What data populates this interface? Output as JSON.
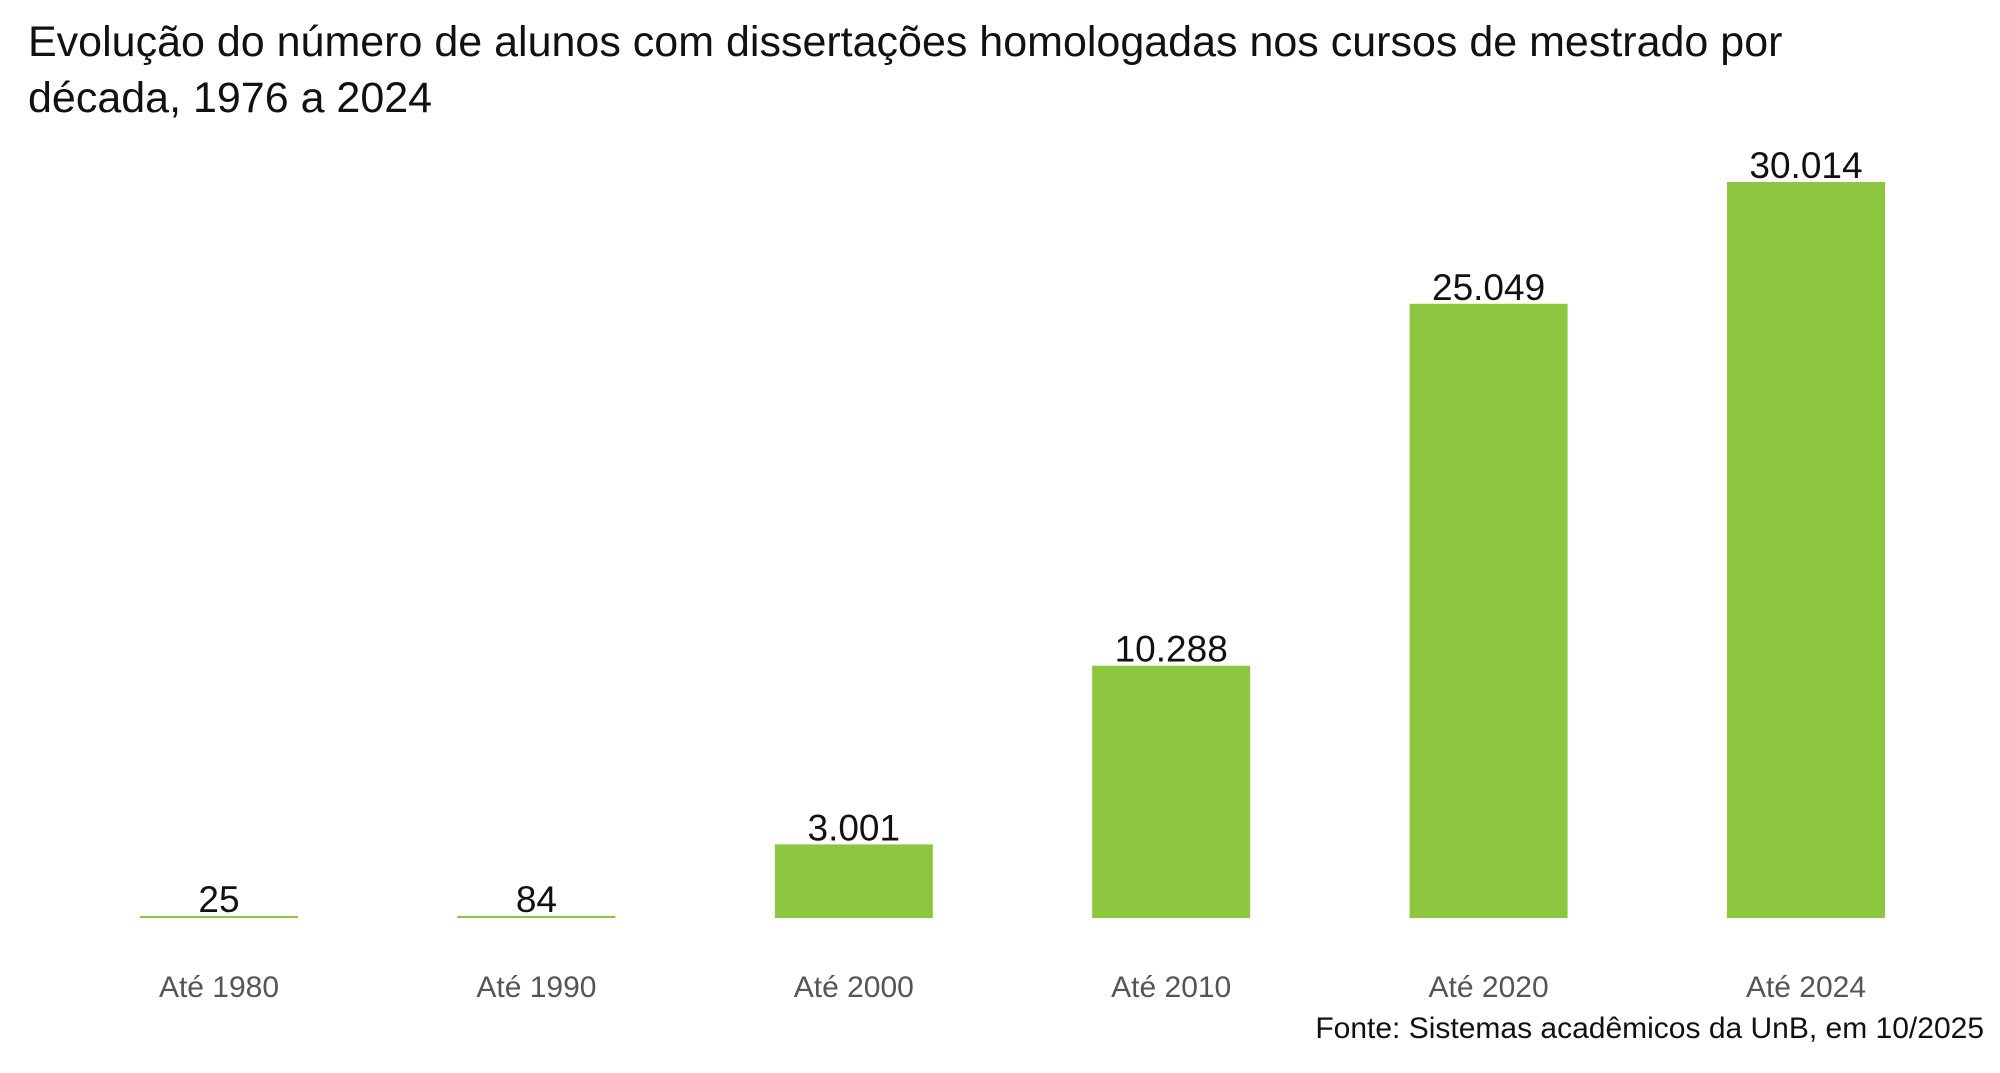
{
  "chart_data": {
    "type": "bar",
    "title": "Evolução do número de alunos com dissertações homologadas nos cursos de mestrado por década, 1976 a 2024",
    "categories": [
      "Até 1980",
      "Até 1990",
      "Até 2000",
      "Até 2010",
      "Até 2020",
      "Até 2024"
    ],
    "values": [
      25,
      84,
      3001,
      10288,
      25049,
      30014
    ],
    "value_labels": [
      "25",
      "84",
      "3.001",
      "10.288",
      "25.049",
      "30.014"
    ],
    "xlabel": "",
    "ylabel": "",
    "ylim": [
      0,
      30014
    ],
    "grid": false,
    "legend": "none",
    "bar_color": "#8DC63F",
    "source": "Fonte: Sistemas acadêmicos da UnB, em 10/2025"
  }
}
